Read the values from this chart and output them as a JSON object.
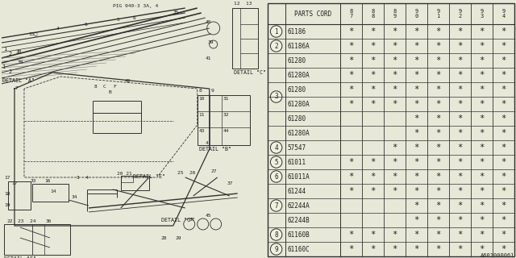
{
  "diagram_id": "A601000061",
  "fig_ref": "PIG 940-3 3A, 4",
  "bg_color": "#e8e8d8",
  "line_color": "#303030",
  "text_color": "#202020",
  "table_bg": "#f0f0e0",
  "table": {
    "year_cols": [
      "8\n7",
      "8\n8",
      "8\n9",
      "9\n0",
      "9\n1",
      "9\n2",
      "9\n3",
      "9\n4"
    ],
    "rows": [
      {
        "num": "1",
        "part": "61186",
        "marks": [
          1,
          1,
          1,
          1,
          1,
          1,
          1,
          1
        ],
        "group_start": true,
        "group_end": true
      },
      {
        "num": "2",
        "part": "61186A",
        "marks": [
          1,
          1,
          1,
          1,
          1,
          1,
          1,
          1
        ],
        "group_start": true,
        "group_end": true
      },
      {
        "num": "3",
        "part": "61280",
        "marks": [
          1,
          1,
          1,
          1,
          1,
          1,
          1,
          1
        ],
        "group_start": true,
        "group_end": false
      },
      {
        "num": "",
        "part": "61280A",
        "marks": [
          1,
          1,
          1,
          1,
          1,
          1,
          1,
          1
        ],
        "group_start": false,
        "group_end": false
      },
      {
        "num": "",
        "part": "61280",
        "marks": [
          1,
          1,
          1,
          1,
          1,
          1,
          1,
          1
        ],
        "group_start": false,
        "group_end": false
      },
      {
        "num": "",
        "part": "61280A",
        "marks": [
          1,
          1,
          1,
          1,
          1,
          1,
          1,
          1
        ],
        "group_start": false,
        "group_end": false
      },
      {
        "num": "",
        "part": "61280",
        "marks": [
          0,
          0,
          0,
          1,
          1,
          1,
          1,
          1
        ],
        "group_start": false,
        "group_end": false
      },
      {
        "num": "",
        "part": "61280A",
        "marks": [
          0,
          0,
          0,
          1,
          1,
          1,
          1,
          1
        ],
        "group_start": false,
        "group_end": true
      },
      {
        "num": "4",
        "part": "57547",
        "marks": [
          0,
          0,
          1,
          1,
          1,
          1,
          1,
          1
        ],
        "group_start": true,
        "group_end": true
      },
      {
        "num": "5",
        "part": "61011",
        "marks": [
          1,
          1,
          1,
          1,
          1,
          1,
          1,
          1
        ],
        "group_start": true,
        "group_end": true
      },
      {
        "num": "6",
        "part": "61011A",
        "marks": [
          1,
          1,
          1,
          1,
          1,
          1,
          1,
          1
        ],
        "group_start": true,
        "group_end": true
      },
      {
        "num": "7",
        "part": "61244",
        "marks": [
          1,
          1,
          1,
          1,
          1,
          1,
          1,
          1
        ],
        "group_start": true,
        "group_end": false
      },
      {
        "num": "",
        "part": "62244A",
        "marks": [
          0,
          0,
          0,
          1,
          1,
          1,
          1,
          1
        ],
        "group_start": false,
        "group_end": false
      },
      {
        "num": "",
        "part": "62244B",
        "marks": [
          0,
          0,
          0,
          1,
          1,
          1,
          1,
          1
        ],
        "group_start": false,
        "group_end": true
      },
      {
        "num": "8",
        "part": "61160B",
        "marks": [
          1,
          1,
          1,
          1,
          1,
          1,
          1,
          1
        ],
        "group_start": true,
        "group_end": true
      },
      {
        "num": "9",
        "part": "61160C",
        "marks": [
          1,
          1,
          1,
          1,
          1,
          1,
          1,
          1
        ],
        "group_start": true,
        "group_end": true
      }
    ],
    "groups": [
      {
        "num": "1",
        "rows": [
          0,
          0
        ]
      },
      {
        "num": "2",
        "rows": [
          1,
          1
        ]
      },
      {
        "num": "3",
        "rows": [
          2,
          7
        ]
      },
      {
        "num": "4",
        "rows": [
          8,
          8
        ]
      },
      {
        "num": "5",
        "rows": [
          9,
          9
        ]
      },
      {
        "num": "6",
        "rows": [
          10,
          10
        ]
      },
      {
        "num": "7",
        "rows": [
          11,
          13
        ]
      },
      {
        "num": "8",
        "rows": [
          14,
          14
        ]
      },
      {
        "num": "9",
        "rows": [
          15,
          15
        ]
      }
    ]
  }
}
